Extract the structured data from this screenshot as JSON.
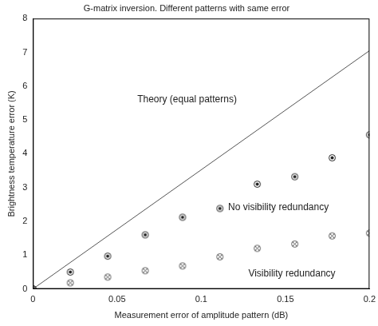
{
  "chart_data": {
    "type": "scatter",
    "title": "G-matrix inversion. Different patterns with same error",
    "x_label": "Measurement error of amplitude pattern (dB)",
    "y_label": "Brightness temperature error (K)",
    "xlim": [
      0,
      0.2
    ],
    "xticks": [
      0,
      0.05,
      0.1,
      0.15,
      0.2
    ],
    "ylim": [
      0,
      8
    ],
    "yticks": [
      0,
      1,
      2,
      3,
      4,
      5,
      6,
      7,
      8
    ],
    "grid": false,
    "series": [
      {
        "name": "Theory (equal patterns)",
        "type": "line",
        "color": "#555555",
        "line_style": "solid",
        "x": [
          0,
          0.2
        ],
        "values": [
          0,
          7.05
        ]
      },
      {
        "name": "No visibility redundancy",
        "type": "scatter",
        "color": "#222222",
        "marker": "circle-dot",
        "x": [
          0,
          0.0222,
          0.0444,
          0.0667,
          0.0889,
          0.1111,
          0.1333,
          0.1556,
          0.1778,
          0.2
        ],
        "values": [
          0,
          0.5,
          0.97,
          1.6,
          2.12,
          2.38,
          3.1,
          3.32,
          3.88,
          4.56
        ]
      },
      {
        "name": "Visibility redundancy",
        "type": "scatter",
        "color": "#555555",
        "marker": "circle-cross",
        "x": [
          0,
          0.0222,
          0.0444,
          0.0667,
          0.0889,
          0.1111,
          0.1333,
          0.1556,
          0.1778,
          0.2
        ],
        "values": [
          0,
          0.18,
          0.35,
          0.54,
          0.68,
          0.95,
          1.2,
          1.33,
          1.57,
          1.65
        ]
      }
    ]
  }
}
